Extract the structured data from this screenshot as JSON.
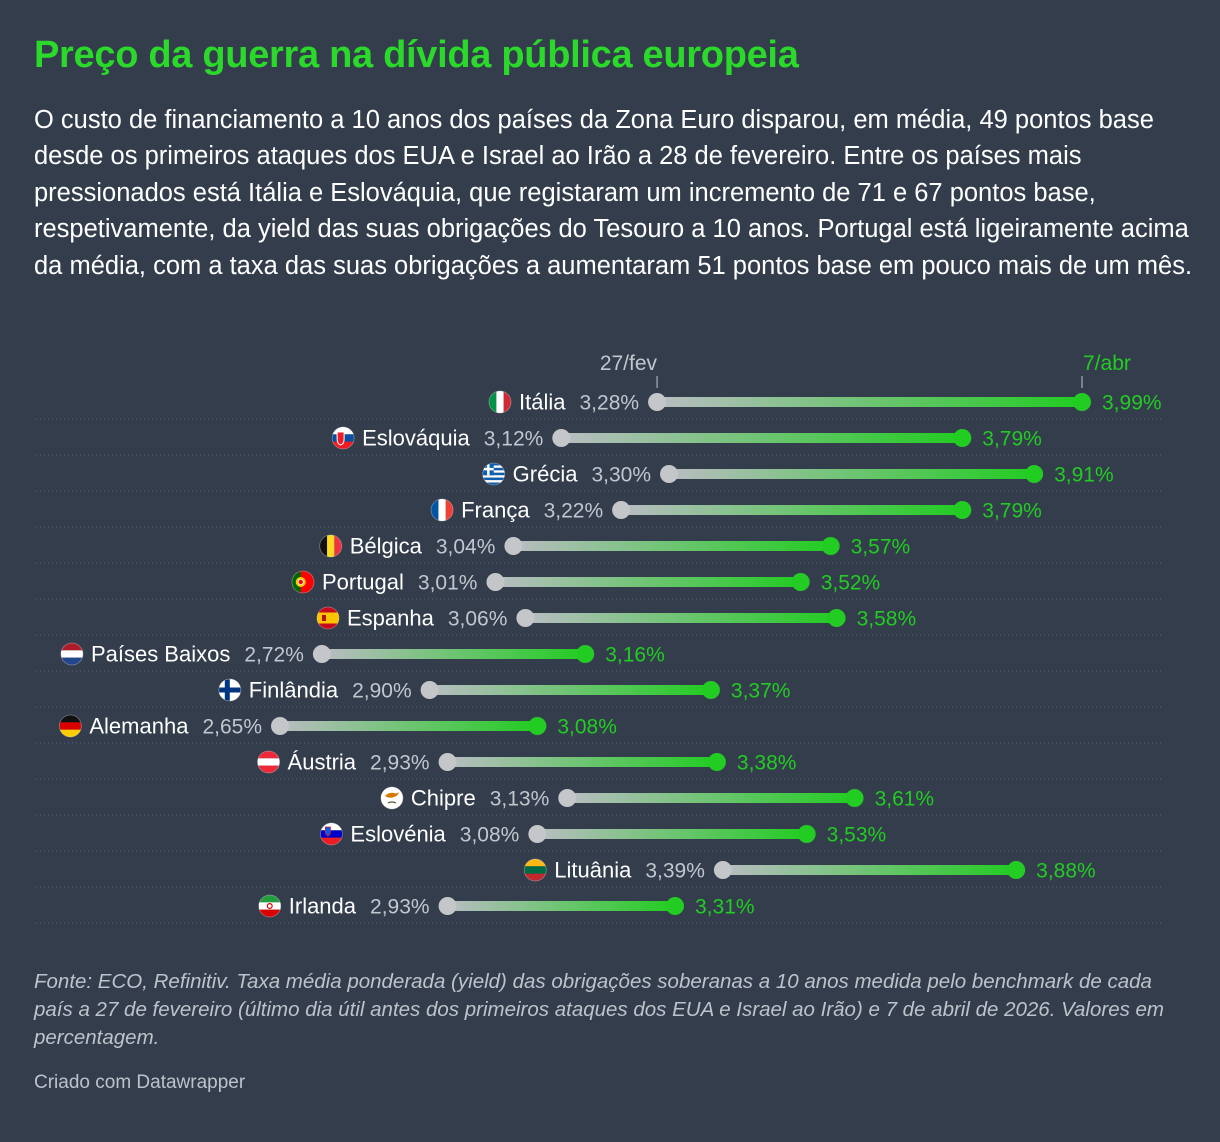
{
  "header": {
    "title": "Preço da guerra na dívida pública europeia",
    "subtitle": "O custo de financiamento a 10 anos dos países da Zona Euro disparou, em média, 49 pontos base desde os primeiros ataques dos EUA e Israel ao Irão a 28 de fevereiro. Entre os países mais pressionados está Itália e Eslováquia, que registaram um incremento de 71 e 67 pontos base, respetivamente, da yield das suas obrigações do Tesouro a 10 anos. Portugal está ligeiramente acima da média, com a taxa das suas obrigações a aumentaram 51 pontos base em pouco mais de um mês."
  },
  "colors": {
    "background": "#333d4b",
    "accent_green": "#22cc22",
    "start_grey": "#c4c6c9",
    "label_grey": "#c1c7ce"
  },
  "chart_data": {
    "type": "dot-range",
    "series": [
      {
        "name": "27/fev",
        "color": "#c4c6c9"
      },
      {
        "name": "7/abr",
        "color": "#22cc22"
      }
    ],
    "unit": "%",
    "categories": [
      "Itália",
      "Eslováquia",
      "Grécia",
      "França",
      "Bélgica",
      "Portugal",
      "Espanha",
      "Países Baixos",
      "Finlândia",
      "Alemanha",
      "Áustria",
      "Chipre",
      "Eslovénia",
      "Lituânia",
      "Irlanda"
    ],
    "rows": [
      {
        "country": "Itália",
        "flag": "italy-flag",
        "start": 3.28,
        "end": 3.99,
        "start_label": "3,28%",
        "end_label": "3,99%"
      },
      {
        "country": "Eslováquia",
        "flag": "slovakia-flag",
        "start": 3.12,
        "end": 3.79,
        "start_label": "3,12%",
        "end_label": "3,79%"
      },
      {
        "country": "Grécia",
        "flag": "greece-flag",
        "start": 3.3,
        "end": 3.91,
        "start_label": "3,30%",
        "end_label": "3,91%"
      },
      {
        "country": "França",
        "flag": "france-flag",
        "start": 3.22,
        "end": 3.79,
        "start_label": "3,22%",
        "end_label": "3,79%"
      },
      {
        "country": "Bélgica",
        "flag": "belgium-flag",
        "start": 3.04,
        "end": 3.57,
        "start_label": "3,04%",
        "end_label": "3,57%"
      },
      {
        "country": "Portugal",
        "flag": "portugal-flag",
        "start": 3.01,
        "end": 3.52,
        "start_label": "3,01%",
        "end_label": "3,52%"
      },
      {
        "country": "Espanha",
        "flag": "spain-flag",
        "start": 3.06,
        "end": 3.58,
        "start_label": "3,06%",
        "end_label": "3,58%"
      },
      {
        "country": "Países Baixos",
        "flag": "netherlands-flag",
        "start": 2.72,
        "end": 3.16,
        "start_label": "2,72%",
        "end_label": "3,16%"
      },
      {
        "country": "Finlândia",
        "flag": "finland-flag",
        "start": 2.9,
        "end": 3.37,
        "start_label": "2,90%",
        "end_label": "3,37%"
      },
      {
        "country": "Alemanha",
        "flag": "germany-flag",
        "start": 2.65,
        "end": 3.08,
        "start_label": "2,65%",
        "end_label": "3,08%"
      },
      {
        "country": "Áustria",
        "flag": "austria-flag",
        "start": 2.93,
        "end": 3.38,
        "start_label": "2,93%",
        "end_label": "3,38%"
      },
      {
        "country": "Chipre",
        "flag": "cyprus-flag",
        "start": 3.13,
        "end": 3.61,
        "start_label": "3,13%",
        "end_label": "3,61%"
      },
      {
        "country": "Eslovénia",
        "flag": "slovenia-flag",
        "start": 3.08,
        "end": 3.53,
        "start_label": "3,08%",
        "end_label": "3,53%"
      },
      {
        "country": "Lituânia",
        "flag": "lithuania-flag",
        "start": 3.39,
        "end": 3.88,
        "start_label": "3,39%",
        "end_label": "3,88%"
      },
      {
        "country": "Irlanda",
        "flag": "iran-flag",
        "start": 2.93,
        "end": 3.31,
        "start_label": "2,93%",
        "end_label": "3,31%"
      }
    ],
    "xlim": [
      2.65,
      3.99
    ],
    "grid": false,
    "legend": "top, above Itália row"
  },
  "footer": {
    "note": "Fonte: ECO, Refinitiv. Taxa média ponderada (yield) das obrigações soberanas a 10 anos medida pelo benchmark de cada país a 27 de fevereiro (último dia útil antes dos primeiros ataques dos EUA e Israel ao Irão) e 7 de abril de 2026. Valores em percentagem.",
    "credit": "Criado com Datawrapper"
  }
}
